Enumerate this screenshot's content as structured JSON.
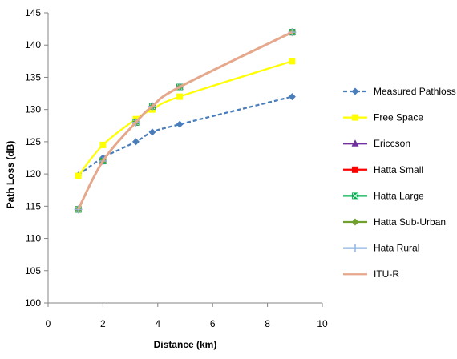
{
  "chart_data": {
    "type": "line",
    "title": "",
    "xlabel": "Distance (km)",
    "ylabel": "Path Loss (dB)",
    "xlim": [
      0,
      10
    ],
    "ylim": [
      100,
      145
    ],
    "xticks": [
      0,
      2,
      4,
      6,
      8,
      10
    ],
    "yticks": [
      100,
      105,
      110,
      115,
      120,
      125,
      130,
      135,
      140,
      145
    ],
    "grid": false,
    "legend_position": "right",
    "x": [
      1.1,
      2.0,
      3.2,
      3.8,
      4.8,
      8.9
    ],
    "series": [
      {
        "name": "Measured Pathloss",
        "color": "#4A7EBB",
        "marker": "diamond",
        "dashed": true,
        "values": [
          119.8,
          122.5,
          125.0,
          126.5,
          127.7,
          132.0
        ]
      },
      {
        "name": "Free Space",
        "color": "#FFFF00",
        "marker": "square",
        "dashed": false,
        "values": [
          119.7,
          124.5,
          128.5,
          130.0,
          132.0,
          137.5
        ]
      },
      {
        "name": "Ericcson",
        "color": "#7030A0",
        "marker": "triangle",
        "dashed": false,
        "values": [
          114.5,
          122.0,
          128.0,
          130.5,
          133.5,
          142.0
        ]
      },
      {
        "name": "Hatta Small",
        "color": "#FF0000",
        "marker": "square",
        "dashed": false,
        "values": [
          114.5,
          122.0,
          128.0,
          130.5,
          133.5,
          142.0
        ]
      },
      {
        "name": "Hatta Large",
        "color": "#00B050",
        "marker": "x-square",
        "dashed": false,
        "values": [
          114.5,
          122.0,
          128.0,
          130.5,
          133.5,
          142.0
        ]
      },
      {
        "name": "Hatta Sub-Urban",
        "color": "#70A030",
        "marker": "diamond",
        "dashed": false,
        "values": [
          114.5,
          122.0,
          128.0,
          130.5,
          133.5,
          142.0
        ]
      },
      {
        "name": "Hata Rural",
        "color": "#8DB4E2",
        "marker": "plus",
        "dashed": false,
        "values": [
          114.5,
          122.0,
          128.0,
          130.5,
          133.5,
          142.0
        ]
      },
      {
        "name": "ITU-R",
        "color": "#E6A88C",
        "marker": "none",
        "dashed": false,
        "values": [
          114.5,
          122.0,
          128.0,
          130.5,
          133.5,
          142.0
        ]
      }
    ]
  }
}
